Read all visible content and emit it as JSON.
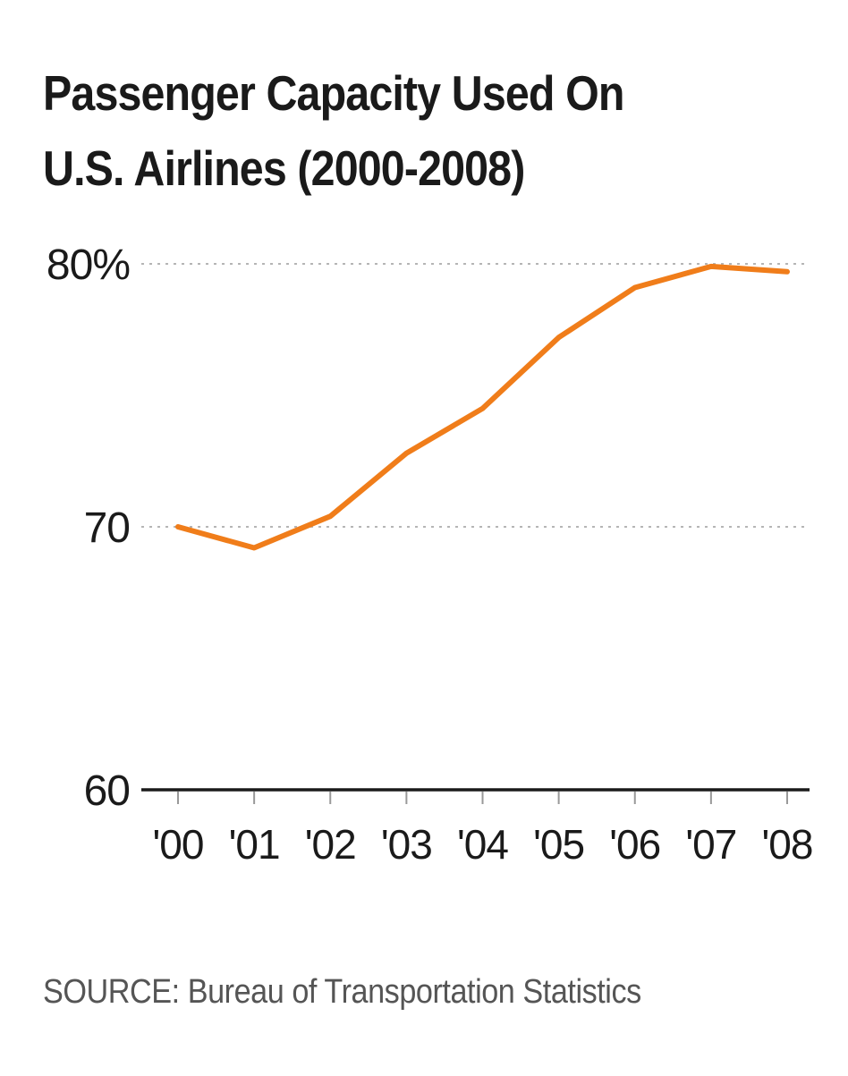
{
  "chart_data": {
    "type": "line",
    "title_lines": [
      "Passenger Capacity Used On",
      "U.S. Airlines (2000-2008)"
    ],
    "categories": [
      "'00",
      "'01",
      "'02",
      "'03",
      "'04",
      "'05",
      "'06",
      "'07",
      "'08"
    ],
    "y_tick_labels": [
      "80%",
      "70",
      "60"
    ],
    "y_tick_values": [
      80,
      70,
      60
    ],
    "ylim": [
      60,
      80
    ],
    "values": [
      70.0,
      69.2,
      70.4,
      72.8,
      74.5,
      77.2,
      79.1,
      79.9,
      79.7
    ],
    "line_color": "#f07d1a",
    "gridlines": "dotted",
    "source": "SOURCE: Bureau of Transportation Statistics"
  }
}
